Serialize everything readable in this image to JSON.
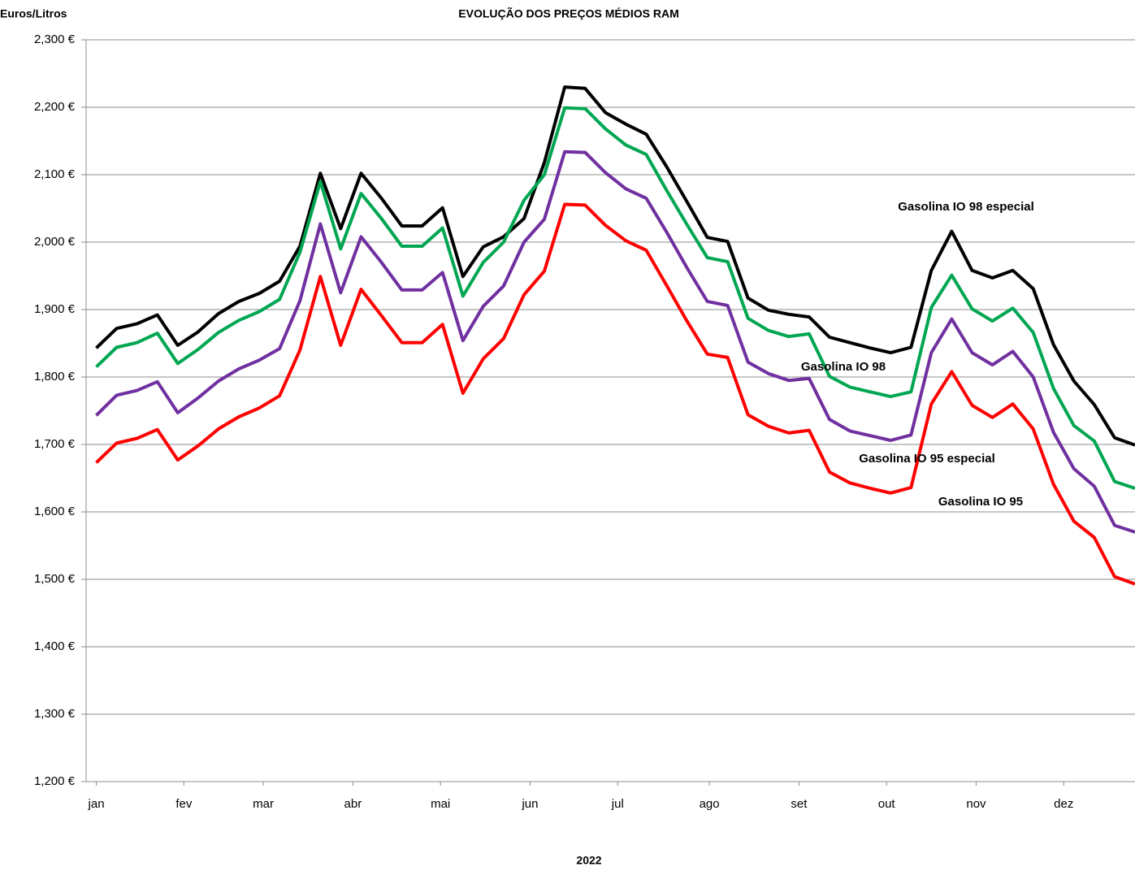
{
  "chart_data": {
    "type": "line",
    "title": "EVOLUÇÃO DOS PREÇOS MÉDIOS RAM",
    "y_label": "Euros/Litros",
    "x_label": "2022",
    "x": [
      0,
      1,
      2,
      3,
      4,
      5,
      6,
      7,
      8,
      9,
      10,
      11,
      12,
      13,
      14,
      15,
      16,
      17,
      18,
      19,
      20,
      21,
      22,
      23,
      24,
      25,
      26,
      27,
      28,
      29,
      30,
      31,
      32,
      33,
      34,
      35,
      36,
      37,
      38,
      39,
      40,
      41,
      42,
      43,
      44,
      45,
      46,
      47,
      48,
      49,
      50,
      51
    ],
    "xlim": [
      -0.5,
      51
    ],
    "xticks": [
      {
        "value": 0,
        "label": "jan"
      },
      {
        "value": 4.3,
        "label": "fev"
      },
      {
        "value": 8.2,
        "label": "mar"
      },
      {
        "value": 12.6,
        "label": "abr"
      },
      {
        "value": 16.9,
        "label": "mai"
      },
      {
        "value": 21.3,
        "label": "jun"
      },
      {
        "value": 25.6,
        "label": "jul"
      },
      {
        "value": 30.1,
        "label": "ago"
      },
      {
        "value": 34.5,
        "label": "set"
      },
      {
        "value": 38.8,
        "label": "out"
      },
      {
        "value": 43.2,
        "label": "nov"
      },
      {
        "value": 47.5,
        "label": "dez"
      }
    ],
    "ylim": [
      1200,
      2300
    ],
    "yticks": [
      {
        "value": 1200,
        "label": "1,200 €"
      },
      {
        "value": 1300,
        "label": "1,300 €"
      },
      {
        "value": 1400,
        "label": "1,400 €"
      },
      {
        "value": 1500,
        "label": "1,500 €"
      },
      {
        "value": 1600,
        "label": "1,600 €"
      },
      {
        "value": 1700,
        "label": "1,700 €"
      },
      {
        "value": 1800,
        "label": "1,800 €"
      },
      {
        "value": 1900,
        "label": "1,900 €"
      },
      {
        "value": 2000,
        "label": "2,000 €"
      },
      {
        "value": 2100,
        "label": "2,100 €"
      },
      {
        "value": 2200,
        "label": "2,200 €"
      },
      {
        "value": 2300,
        "label": "2,300 €"
      }
    ],
    "grid": true,
    "series": [
      {
        "name": "Gasolina IO 98 especial",
        "color": "#000000",
        "label_color": "#000000",
        "values": [
          1843,
          1872,
          1879,
          1892,
          1847,
          1867,
          1894,
          1912,
          1924,
          1942,
          1994,
          2102,
          2020,
          2102,
          2065,
          2024,
          2024,
          2051,
          1949,
          1993,
          2008,
          2035,
          2118,
          2230,
          2228,
          2192,
          2175,
          2160,
          2112,
          2060,
          2007,
          2001,
          1917,
          1899,
          1893,
          1889,
          1859,
          1851,
          1843,
          1836,
          1844,
          1958,
          2016,
          1958,
          1947,
          1958,
          1931,
          1848,
          1794,
          1759,
          1710,
          1699
        ]
      },
      {
        "name": "Gasolina IO 98",
        "color": "#00a651",
        "label_color": "#1aa650",
        "values": [
          1815,
          1844,
          1851,
          1865,
          1820,
          1841,
          1866,
          1884,
          1897,
          1915,
          1985,
          2090,
          1990,
          2072,
          2035,
          1994,
          1994,
          2021,
          1920,
          1970,
          2000,
          2062,
          2100,
          2199,
          2198,
          2168,
          2144,
          2130,
          2077,
          2026,
          1977,
          1971,
          1887,
          1869,
          1860,
          1864,
          1801,
          1785,
          1778,
          1771,
          1778,
          1903,
          1951,
          1901,
          1883,
          1902,
          1866,
          1783,
          1728,
          1705,
          1645,
          1635
        ]
      },
      {
        "name": "Gasolina IO 95 especial",
        "color": "#7030a0",
        "label_color": "#7f1f8f",
        "values": [
          1743,
          1773,
          1780,
          1793,
          1747,
          1769,
          1794,
          1812,
          1825,
          1842,
          1913,
          2027,
          1925,
          2008,
          1970,
          1929,
          1929,
          1955,
          1854,
          1905,
          1935,
          2000,
          2034,
          2134,
          2133,
          2103,
          2079,
          2065,
          2015,
          1962,
          1912,
          1906,
          1822,
          1805,
          1795,
          1798,
          1737,
          1720,
          1713,
          1706,
          1714,
          1836,
          1886,
          1836,
          1818,
          1838,
          1800,
          1718,
          1664,
          1638,
          1580,
          1570
        ]
      },
      {
        "name": "Gasolina IO 95",
        "color": "#ff0000",
        "label_color": "#ff0000",
        "values": [
          1673,
          1702,
          1709,
          1722,
          1677,
          1698,
          1723,
          1741,
          1754,
          1772,
          1840,
          1949,
          1847,
          1930,
          1891,
          1851,
          1851,
          1878,
          1776,
          1827,
          1857,
          1922,
          1957,
          2056,
          2055,
          2025,
          2002,
          1988,
          1936,
          1883,
          1834,
          1829,
          1744,
          1727,
          1717,
          1721,
          1659,
          1643,
          1635,
          1628,
          1636,
          1760,
          1808,
          1758,
          1740,
          1760,
          1723,
          1641,
          1586,
          1562,
          1504,
          1493
        ]
      }
    ]
  }
}
